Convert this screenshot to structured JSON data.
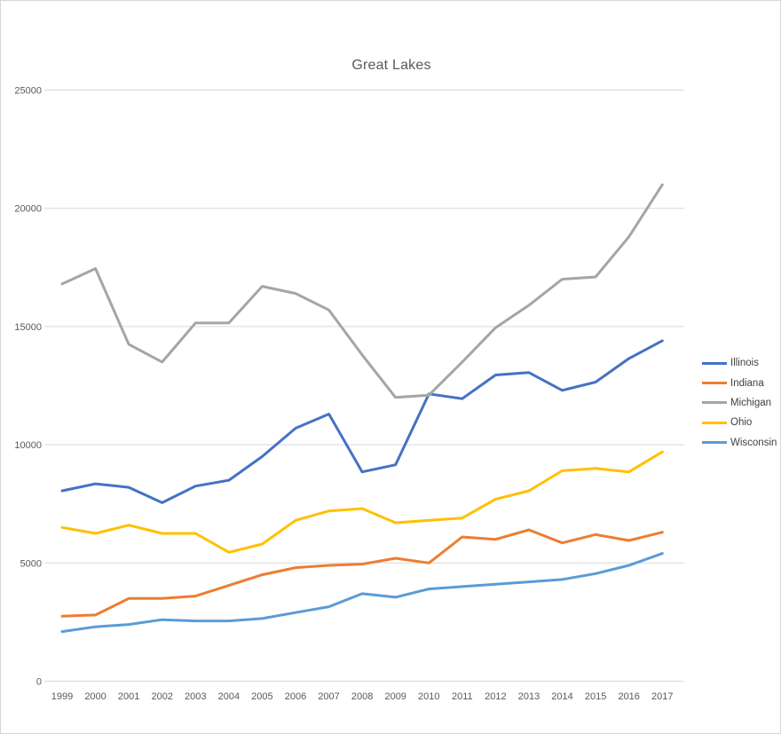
{
  "title": "Great Lakes",
  "chart_data": {
    "type": "line",
    "title": "Great Lakes",
    "x": [
      1999,
      2000,
      2001,
      2002,
      2003,
      2004,
      2005,
      2006,
      2007,
      2008,
      2009,
      2010,
      2011,
      2012,
      2013,
      2014,
      2015,
      2016,
      2017
    ],
    "series": [
      {
        "name": "Illinois",
        "color": "#4472C4",
        "values": [
          8050,
          8350,
          8200,
          7550,
          8250,
          8500,
          9500,
          10700,
          11300,
          8850,
          9150,
          12150,
          11950,
          12950,
          13050,
          12300,
          12650,
          13650,
          14400
        ]
      },
      {
        "name": "Indiana",
        "color": "#ED7D31",
        "values": [
          2750,
          2800,
          3500,
          3500,
          3600,
          4050,
          4500,
          4800,
          4900,
          4950,
          5200,
          5000,
          6100,
          6000,
          6400,
          5850,
          6200,
          5950,
          6300
        ]
      },
      {
        "name": "Michigan",
        "color": "#A5A5A5",
        "values": [
          16800,
          17450,
          14250,
          13500,
          15150,
          15150,
          16700,
          16400,
          15700,
          13800,
          12000,
          12100,
          13500,
          14950,
          15900,
          17000,
          17100,
          18800,
          21000
        ]
      },
      {
        "name": "Ohio",
        "color": "#FFC000",
        "values": [
          6500,
          6250,
          6600,
          6250,
          6250,
          5450,
          5800,
          6800,
          7200,
          7300,
          6700,
          6800,
          6900,
          7700,
          8050,
          8900,
          9000,
          8850,
          9700
        ]
      },
      {
        "name": "Wisconsin",
        "color": "#5B9BD5",
        "values": [
          2100,
          2300,
          2400,
          2600,
          2550,
          2550,
          2650,
          2900,
          3150,
          3700,
          3550,
          3900,
          4000,
          4100,
          4200,
          4300,
          4550,
          4900,
          5400
        ]
      }
    ],
    "ylim": [
      0,
      25000
    ],
    "yticks": [
      0,
      5000,
      10000,
      15000,
      20000,
      25000
    ],
    "grid": "horizontal",
    "gridline_color": "#D9D9D9",
    "legend_position": "right"
  }
}
